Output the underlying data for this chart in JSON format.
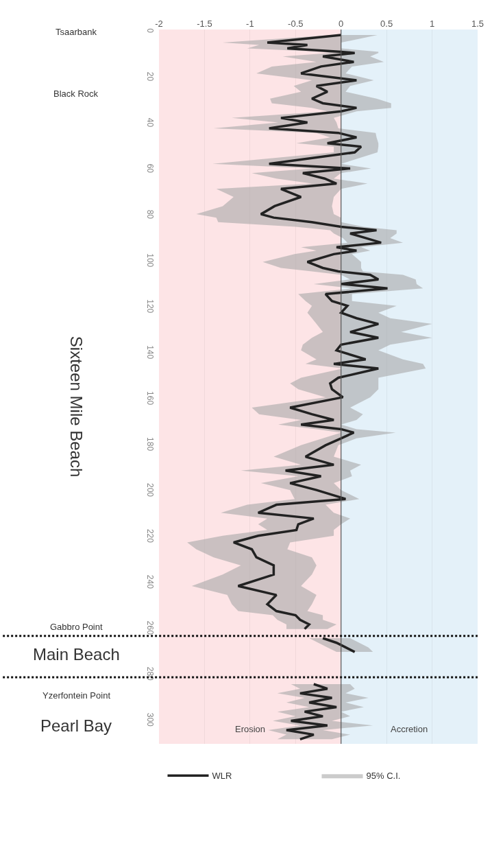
{
  "chart_data": {
    "type": "line",
    "orientation": "horizontal",
    "x": [
      1.4,
      4.7,
      5.7,
      7.2,
      8.7,
      9.2,
      10.7,
      13.1,
      15.1,
      18.1,
      21.1,
      23.6,
      26.1,
      29.1,
      31.1,
      33.1,
      34.6,
      37.5,
      39.5,
      42,
      44,
      46,
      48.5,
      50,
      52.5,
      57.5,
      59.5,
      61.5,
      63.9,
      66.1,
      68.4,
      71.9,
      75.9,
      79.4,
      80.9,
      82.9,
      84.9,
      86.4,
      87.8,
      89.8,
      91.8,
      93.8,
      95.3,
      96.8,
      100.2,
      102.8,
      104.3,
      105.8,
      107.8,
      109.8,
      111.7,
      114.2,
      117.2,
      119.3,
      122.3,
      124.7,
      127.2,
      130.7,
      133.2,
      136.2,
      138.7,
      142.6,
      144.6,
      146.6,
      150.6,
      153.1,
      155.6,
      159.1,
      163.6,
      166.5,
      169,
      171,
      173,
      174.5,
      177,
      180,
      185,
      188.5,
      191,
      193.5,
      196.5,
      199.5,
      203.4,
      205.9,
      209.4,
      211.9,
      214.4,
      216.9,
      219.4,
      222.3,
      225.3,
      228.8,
      232.3,
      236.3,
      241.3,
      245.2,
      249.2,
      252.2,
      254,
      256,
      258,
      260,
      262.5,
      264,
      266,
      268,
      270,
      279,
      284,
      286,
      288,
      290,
      292,
      294,
      296,
      298,
      300,
      302,
      304,
      306,
      308
    ],
    "series": [
      {
        "name": "WLR",
        "color": "#222222",
        "values": [
          0,
          -0.81,
          -0.37,
          -0.59,
          0,
          0.15,
          -0.2,
          0.14,
          -0.22,
          -0.44,
          0.17,
          -0.27,
          -0.15,
          -0.32,
          -0.2,
          0.17,
          0,
          -0.66,
          -0.37,
          -0.79,
          -0.03,
          0.17,
          -0.15,
          0.22,
          0.15,
          -0.79,
          0.1,
          -0.42,
          -0.18,
          -0.05,
          -0.66,
          -0.44,
          -0.73,
          -0.88,
          -0.74,
          -0.32,
          0,
          0.39,
          0.1,
          0.27,
          0.44,
          -0.05,
          0.17,
          -0.08,
          -0.37,
          -0.2,
          -0.03,
          0.32,
          0.41,
          0,
          0.51,
          -0.17,
          -0.1,
          0.07,
          0,
          0.17,
          0.41,
          0.1,
          0.41,
          0,
          -0.05,
          0.27,
          -0.08,
          0.41,
          -0.03,
          -0.12,
          -0.1,
          0.02,
          -0.56,
          -0.32,
          -0.08,
          -0.44,
          0,
          0.14,
          0,
          -0.17,
          -0.39,
          -0.08,
          -0.61,
          -0.22,
          -0.56,
          -0.27,
          0.05,
          -0.71,
          -0.91,
          -0.3,
          -0.47,
          -0.49,
          -0.91,
          -1.18,
          -0.98,
          -0.93,
          -0.74,
          -0.74,
          -1.13,
          -0.71,
          -0.81,
          -0.71,
          -0.5,
          -0.45,
          -0.35,
          -0.4,
          null,
          -0.2,
          -0.05,
          0.05,
          0.15,
          null,
          -0.3,
          -0.15,
          -0.45,
          -0.1,
          -0.35,
          -0.05,
          -0.4,
          -0.2,
          -0.55,
          -0.15,
          -0.6,
          -0.3,
          -0.45
        ],
        "lower": [
          -0.1,
          -1.3,
          -0.9,
          -1.03,
          -0.22,
          -0.12,
          -0.64,
          -0.27,
          -0.76,
          -0.93,
          -0.32,
          -0.52,
          -0.44,
          -0.78,
          -0.76,
          -0.32,
          -0.15,
          -1.2,
          -0.69,
          -1.4,
          -0.27,
          -0.12,
          -0.49,
          -0.08,
          -0.08,
          -1.41,
          -0.32,
          -0.98,
          -0.71,
          -0.32,
          -1.37,
          -1.18,
          -1.3,
          -1.59,
          -1.37,
          -1.35,
          -0.5,
          -0.12,
          -0.08,
          0.02,
          0.07,
          -0.44,
          -0.27,
          -0.51,
          -0.86,
          -0.66,
          -0.32,
          0,
          0.1,
          -0.3,
          0.12,
          -0.47,
          -0.39,
          -0.32,
          -0.37,
          -0.32,
          -0.27,
          -0.2,
          -0.32,
          -0.42,
          -0.44,
          -0.27,
          -0.39,
          0.02,
          -0.44,
          -0.56,
          -0.47,
          -0.17,
          -0.98,
          -0.9,
          -0.44,
          -0.69,
          -0.27,
          0,
          -0.2,
          -0.44,
          -0.74,
          -0.44,
          -1.1,
          -0.47,
          -0.88,
          -0.56,
          -0.51,
          -1.03,
          -1.32,
          -0.81,
          -0.91,
          -0.81,
          -1.3,
          -1.69,
          -1.59,
          -1.4,
          -1.1,
          -1.3,
          -1.64,
          -1.25,
          -1.2,
          -1.13,
          -0.75,
          -0.7,
          -0.6,
          -0.6,
          null,
          -0.35,
          -0.25,
          -0.15,
          -0.05,
          null,
          -0.55,
          -0.45,
          -0.7,
          -0.4,
          -0.6,
          -0.35,
          -0.7,
          -0.5,
          -0.75,
          -0.45,
          -0.8,
          -0.6,
          -0.7
        ],
        "upper": [
          0.4,
          0,
          0,
          0,
          0.41,
          0.41,
          0.32,
          0.47,
          0.12,
          0.05,
          0.36,
          0.1,
          0.05,
          0.39,
          0.55,
          0.55,
          0.17,
          -0.08,
          -0.05,
          -0.03,
          0.38,
          0.39,
          0.41,
          0.41,
          0.4,
          0,
          0.33,
          0,
          -0.08,
          0.29,
          0,
          -0.08,
          -0.1,
          -0.08,
          0,
          0,
          0.25,
          0.61,
          0.61,
          0.54,
          0.68,
          0.22,
          0.32,
          0.12,
          0.22,
          0.22,
          0.24,
          0.68,
          0.82,
          0.83,
          0.9,
          0.12,
          0.12,
          0.61,
          0.41,
          0.54,
          1.0,
          0.66,
          1.0,
          0.54,
          0.41,
          0.68,
          0.9,
          0.93,
          0.41,
          0.41,
          0.41,
          0.32,
          0.1,
          0.24,
          0.17,
          0,
          0.17,
          0.6,
          0.17,
          -0.03,
          -0.08,
          0.22,
          0.1,
          0.12,
          -0.08,
          0,
          0.2,
          -0.17,
          -0.08,
          0.1,
          0,
          -0.08,
          -0.08,
          -0.56,
          -0.59,
          -0.32,
          -0.27,
          -0.32,
          -0.44,
          -0.27,
          -0.32,
          -0.37,
          -0.2,
          -0.2,
          -0.05,
          -0.15,
          null,
          0.1,
          0.2,
          0.3,
          0.35,
          null,
          0.1,
          0.15,
          0.05,
          0.3,
          0.05,
          0.25,
          0,
          0.1,
          -0.1,
          0.35,
          -0.2,
          0.1,
          -0.1
        ]
      }
    ],
    "xlim": [
      -2,
      1.5
    ],
    "xticks": [
      -2,
      -1.5,
      -1,
      -0.5,
      0,
      0.5,
      1,
      1.5
    ],
    "ylim": [
      310,
      -1
    ],
    "yticks": [
      0,
      20,
      40,
      60,
      80,
      100,
      120,
      140,
      160,
      180,
      200,
      220,
      240,
      260,
      280,
      300
    ],
    "grid": "x",
    "legend": "bottom",
    "line_style": "solid",
    "bands": [
      {
        "axis": "x",
        "from": -2,
        "to": 0,
        "label": "Erosion",
        "color": "#fde4e6"
      },
      {
        "axis": "x",
        "from": 0,
        "to": 1.5,
        "label": "Accretion",
        "color": "#e4f1f9"
      }
    ],
    "ref_lines": [
      {
        "axis": "x",
        "value": 0,
        "color": "#555555",
        "line_style": "solid"
      },
      {
        "axis": "y",
        "value": 263,
        "color": "#111111",
        "line_style": "dotted"
      },
      {
        "axis": "y",
        "value": 281,
        "color": "#111111",
        "line_style": "dotted"
      }
    ],
    "annotations": [
      "Tsaarbank",
      "Black Rock",
      "Sixteen Mile Beach",
      "Gabbro Point",
      "Main Beach",
      "Yzerfontein Point",
      "Pearl Bay",
      "95% C.I."
    ]
  }
}
